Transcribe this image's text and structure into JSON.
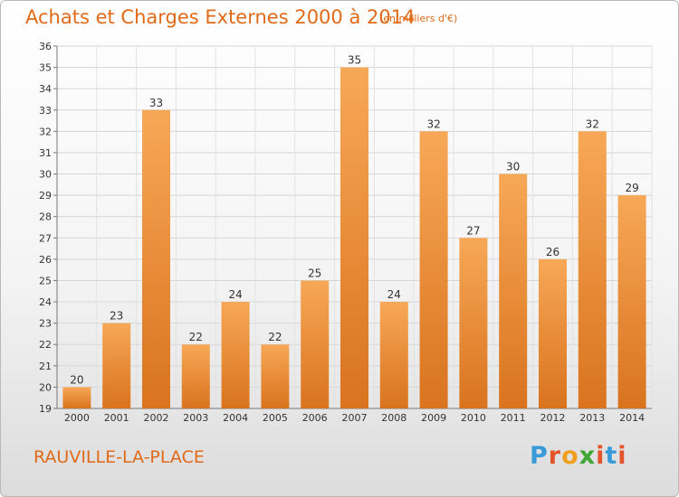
{
  "header": {
    "title": "Achats et Charges Externes 2000 à 2014",
    "unit_note": "(en milliers d'€)"
  },
  "footer": {
    "commune": "RAUVILLE-LA-PLACE",
    "logo_text": "Proxiti"
  },
  "colors": {
    "accent": "#e06a18",
    "bar_light": "#f7a857",
    "bar_dark": "#d9731e",
    "logo": [
      "#3a9ad9",
      "#e4542a",
      "#f0a020",
      "#3fa535",
      "#e4542a",
      "#3a9ad9",
      "#e4542a"
    ]
  },
  "chart_data": {
    "type": "bar",
    "categories": [
      "2000",
      "2001",
      "2002",
      "2003",
      "2004",
      "2005",
      "2006",
      "2007",
      "2008",
      "2009",
      "2010",
      "2011",
      "2012",
      "2013",
      "2014"
    ],
    "values": [
      20,
      23,
      33,
      22,
      24,
      22,
      25,
      35,
      24,
      32,
      27,
      30,
      26,
      32,
      29
    ],
    "ylim": [
      19,
      36
    ],
    "yticks": [
      19,
      20,
      21,
      22,
      23,
      24,
      25,
      26,
      27,
      28,
      29,
      30,
      31,
      32,
      33,
      34,
      35,
      36
    ],
    "grid": true,
    "data_labels": true
  }
}
